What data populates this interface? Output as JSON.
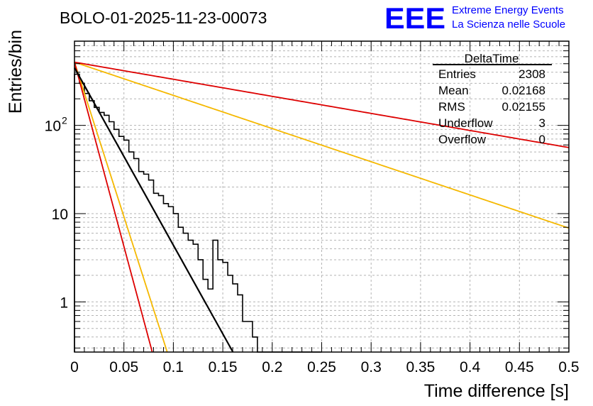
{
  "header": {
    "run_title": "BOLO-01-2025-11-23-00073",
    "logo_text": "EEE",
    "logo_line1": "Extreme Energy Events",
    "logo_line2": "La Scienza nelle Scuole"
  },
  "stats": {
    "name": "DeltaTime",
    "rows": [
      {
        "label": "Entries",
        "value": "2308"
      },
      {
        "label": "Mean",
        "value": "0.02168"
      },
      {
        "label": "RMS",
        "value": "0.02155"
      },
      {
        "label": "Underflow",
        "value": "3"
      },
      {
        "label": "Overflow",
        "value": "0"
      }
    ]
  },
  "colors": {
    "histogram": "#000000",
    "fit": "#000000",
    "red_curve": "#dd0000",
    "orange_curve": "#f5b800",
    "logo": "#0000ff",
    "grid": "#b4b4b4"
  },
  "chart_data": {
    "type": "line",
    "title": "BOLO-01-2025-11-23-00073",
    "xlabel": "Time difference [s]",
    "ylabel": "Entries/bin",
    "xlim": [
      0,
      0.5
    ],
    "ylim": [
      0.27,
      900
    ],
    "yscale": "log",
    "grid": true,
    "x_ticks": [
      {
        "v": 0,
        "label": "0"
      },
      {
        "v": 0.05,
        "label": "0.05"
      },
      {
        "v": 0.1,
        "label": "0.1"
      },
      {
        "v": 0.15,
        "label": "0.15"
      },
      {
        "v": 0.2,
        "label": "0.2"
      },
      {
        "v": 0.25,
        "label": "0.25"
      },
      {
        "v": 0.3,
        "label": "0.3"
      },
      {
        "v": 0.35,
        "label": "0.35"
      },
      {
        "v": 0.4,
        "label": "0.4"
      },
      {
        "v": 0.45,
        "label": "0.45"
      },
      {
        "v": 0.5,
        "label": "0.5"
      }
    ],
    "y_ticks": [
      {
        "v": 1,
        "label": "1"
      },
      {
        "v": 10,
        "label": "10"
      },
      {
        "v": 100,
        "label": "10",
        "sup": "2"
      }
    ],
    "histogram": {
      "bin_width": 0.005,
      "x_start": 0,
      "values": [
        380,
        300,
        230,
        190,
        160,
        140,
        130,
        110,
        90,
        75,
        68,
        50,
        42,
        30,
        28,
        24,
        17,
        16,
        13,
        12,
        10,
        7,
        6,
        5,
        4.5,
        3,
        1.8,
        1.4,
        5,
        3,
        2.8,
        2,
        1.6,
        1.2,
        0.6,
        0.6,
        0.4,
        0.25,
        0.25,
        0.25,
        0.25,
        0.25,
        0.25,
        0.25,
        0.25,
        0.25,
        0.25,
        0.25,
        0.25,
        0.25
      ]
    },
    "series": [
      {
        "name": "fit",
        "color": "#000000",
        "width": 2.2,
        "x0": 0,
        "y0": 450,
        "tau": 0.0216
      },
      {
        "name": "red_long",
        "color": "#dd0000",
        "width": 1.8,
        "x0": 0,
        "y0": 520,
        "tau": 0.2245
      },
      {
        "name": "orange_long",
        "color": "#f5b800",
        "width": 1.8,
        "x0": 0,
        "y0": 520,
        "tau": 0.1155
      },
      {
        "name": "red_short",
        "color": "#dd0000",
        "width": 1.8,
        "x0": 0,
        "y0": 520,
        "tau": 0.0104
      },
      {
        "name": "orange_short",
        "color": "#f5b800",
        "width": 1.8,
        "x0": 0,
        "y0": 520,
        "tau": 0.0124
      }
    ]
  }
}
